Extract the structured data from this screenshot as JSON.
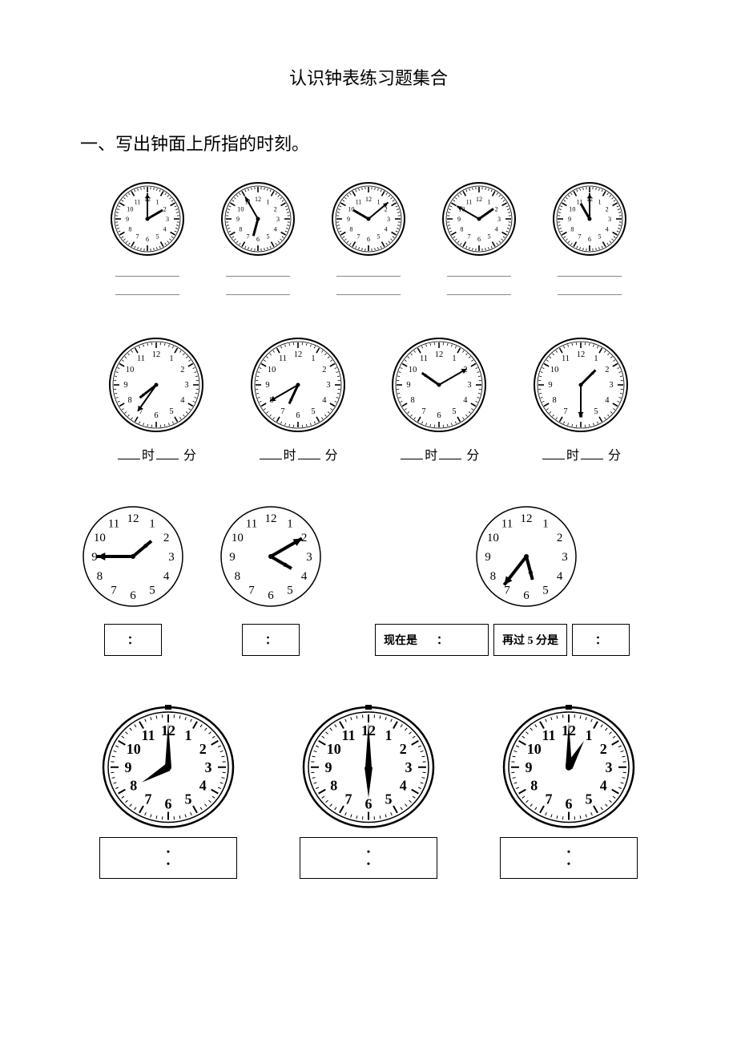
{
  "title": "认识钟表练习题集合",
  "section1_header": "一、写出钟面上所指的时刻。",
  "row1": {
    "clock_radius": 45,
    "clocks": [
      {
        "hour_angle": 60,
        "minute_angle": 0,
        "hour_len": 22,
        "min_len": 32
      },
      {
        "hour_angle": 195,
        "minute_angle": 330,
        "hour_len": 22,
        "min_len": 32
      },
      {
        "hour_angle": 300,
        "minute_angle": 50,
        "hour_len": 22,
        "min_len": 32
      },
      {
        "hour_angle": 55,
        "minute_angle": 300,
        "hour_len": 22,
        "min_len": 32
      },
      {
        "hour_angle": 330,
        "minute_angle": 0,
        "hour_len": 22,
        "min_len": 32
      }
    ]
  },
  "row2": {
    "clock_radius": 58,
    "hour_char": "时",
    "min_char": "分",
    "clocks": [
      {
        "hour_angle": 232,
        "minute_angle": 215,
        "hour_len": 26,
        "min_len": 40
      },
      {
        "hour_angle": 205,
        "minute_angle": 240,
        "hour_len": 26,
        "min_len": 40
      },
      {
        "hour_angle": 305,
        "minute_angle": 60,
        "hour_len": 26,
        "min_len": 40
      },
      {
        "hour_angle": 45,
        "minute_angle": 180,
        "hour_len": 26,
        "min_len": 40
      }
    ]
  },
  "row3": {
    "clock_radius": 62,
    "colon": "：",
    "now_label": "现在是",
    "after5_label": "再过 5 分是",
    "clocks": [
      {
        "hour_angle": 50,
        "minute_angle": 270,
        "hour_len": 30,
        "min_len": 45,
        "style": "simple-arrow"
      },
      {
        "hour_angle": 120,
        "minute_angle": 60,
        "hour_len": 30,
        "min_len": 45,
        "style": "simple-arrow"
      },
      {
        "hour_angle": 165,
        "minute_angle": 218,
        "hour_len": 30,
        "min_len": 45,
        "style": "simple-arrow"
      }
    ]
  },
  "row4": {
    "clock_radius": 78,
    "colon": "：",
    "clocks": [
      {
        "hour_angle": 240,
        "minute_angle": 0,
        "hour_len": 38,
        "min_len": 56,
        "style": "fancy"
      },
      {
        "hour_angle": 180,
        "minute_angle": 0,
        "hour_len": 38,
        "min_len": 56,
        "style": "fancy"
      },
      {
        "hour_angle": 30,
        "minute_angle": 0,
        "hour_len": 38,
        "min_len": 56,
        "style": "fancy"
      }
    ]
  },
  "colors": {
    "stroke": "#000000",
    "bg": "#ffffff"
  }
}
